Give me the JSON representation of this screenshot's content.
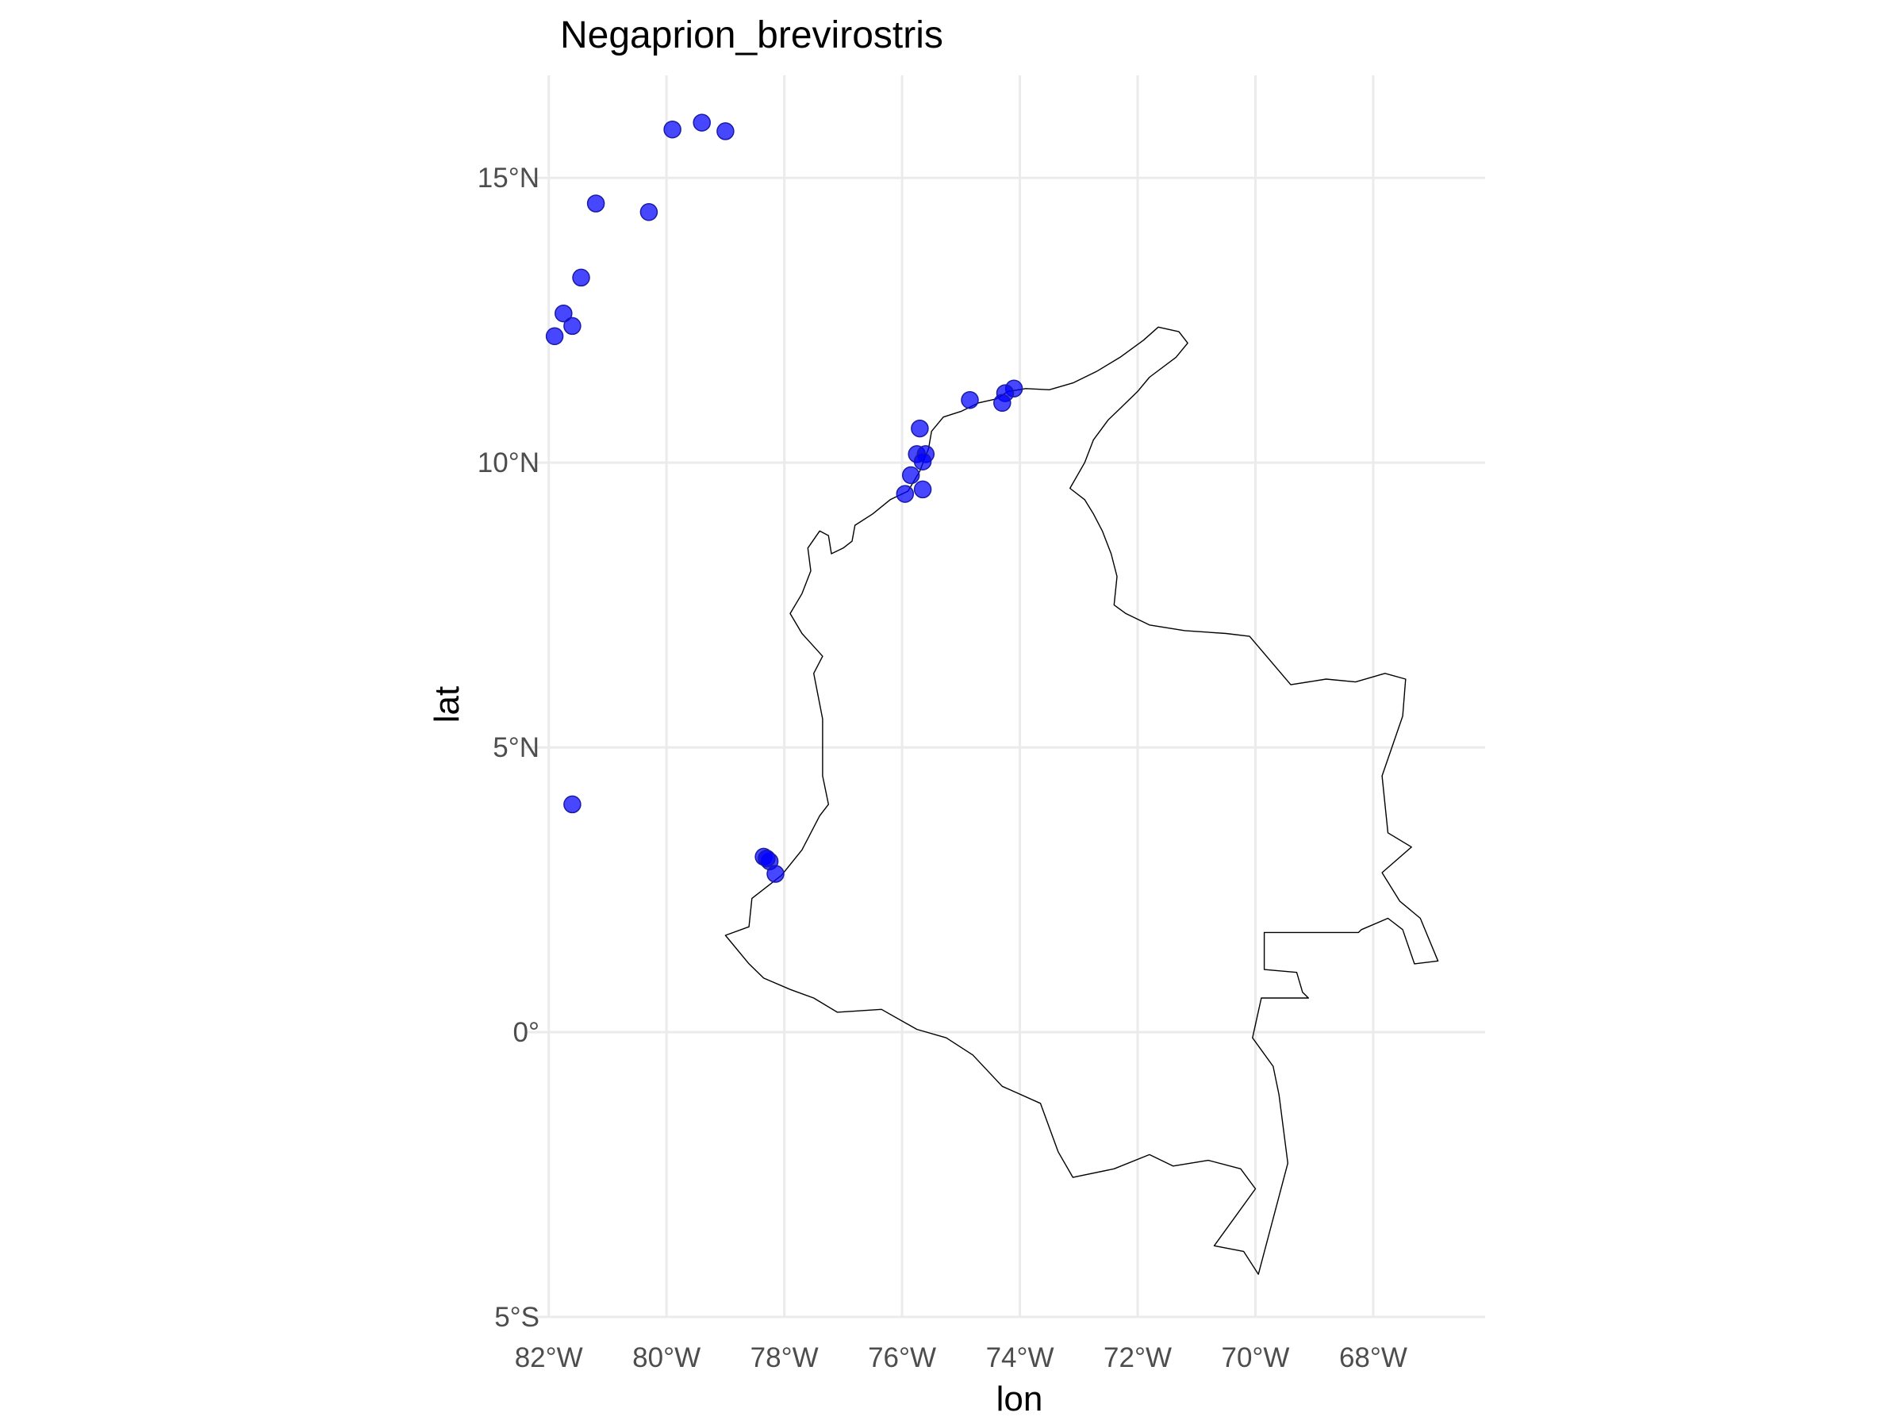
{
  "chart_data": {
    "type": "scatter",
    "title": "Negaprion_brevirostris",
    "xlabel": "lon",
    "ylabel": "lat",
    "xlim": [
      -82.4,
      -66.1
    ],
    "ylim": [
      -5.0,
      16.8
    ],
    "x_ticks": [
      {
        "value": -82,
        "label": "82°W"
      },
      {
        "value": -80,
        "label": "80°W"
      },
      {
        "value": -78,
        "label": "78°W"
      },
      {
        "value": -76,
        "label": "76°W"
      },
      {
        "value": -74,
        "label": "74°W"
      },
      {
        "value": -72,
        "label": "72°W"
      },
      {
        "value": -70,
        "label": "70°W"
      },
      {
        "value": -68,
        "label": "68°W"
      }
    ],
    "y_ticks": [
      {
        "value": 15,
        "label": "15°N"
      },
      {
        "value": 10,
        "label": "10°N"
      },
      {
        "value": 5,
        "label": "5°N"
      },
      {
        "value": 0,
        "label": "0°"
      },
      {
        "value": -5,
        "label": "5°S"
      }
    ],
    "grid": true,
    "legend": "none",
    "point_color": "#0000ff",
    "point_opacity": 0.72,
    "series": [
      {
        "points": [
          {
            "lon": -79.9,
            "lat": 15.85
          },
          {
            "lon": -79.4,
            "lat": 15.97
          },
          {
            "lon": -79.0,
            "lat": 15.82
          },
          {
            "lon": -81.2,
            "lat": 14.55
          },
          {
            "lon": -80.3,
            "lat": 14.4
          },
          {
            "lon": -81.45,
            "lat": 13.25
          },
          {
            "lon": -81.75,
            "lat": 12.62
          },
          {
            "lon": -81.6,
            "lat": 12.4
          },
          {
            "lon": -81.9,
            "lat": 12.22
          },
          {
            "lon": -74.1,
            "lat": 11.3
          },
          {
            "lon": -74.25,
            "lat": 11.22
          },
          {
            "lon": -74.3,
            "lat": 11.05
          },
          {
            "lon": -74.85,
            "lat": 11.1
          },
          {
            "lon": -75.7,
            "lat": 10.6
          },
          {
            "lon": -75.75,
            "lat": 10.15
          },
          {
            "lon": -75.6,
            "lat": 10.15
          },
          {
            "lon": -75.65,
            "lat": 10.02
          },
          {
            "lon": -75.85,
            "lat": 9.78
          },
          {
            "lon": -75.65,
            "lat": 9.53
          },
          {
            "lon": -75.95,
            "lat": 9.45
          },
          {
            "lon": -81.6,
            "lat": 4.0
          },
          {
            "lon": -78.35,
            "lat": 3.08
          },
          {
            "lon": -78.25,
            "lat": 3.0
          },
          {
            "lon": -78.3,
            "lat": 3.05
          },
          {
            "lon": -78.15,
            "lat": 2.78
          }
        ]
      }
    ],
    "outline_label": "",
    "outline": [
      [
        -77.6,
        8.5
      ],
      [
        -77.4,
        8.8
      ],
      [
        -77.25,
        8.72
      ],
      [
        -77.2,
        8.4
      ],
      [
        -77.0,
        8.5
      ],
      [
        -76.85,
        8.62
      ],
      [
        -76.8,
        8.9
      ],
      [
        -76.5,
        9.1
      ],
      [
        -76.2,
        9.35
      ],
      [
        -75.9,
        9.5
      ],
      [
        -75.7,
        9.85
      ],
      [
        -75.55,
        10.25
      ],
      [
        -75.5,
        10.55
      ],
      [
        -75.3,
        10.8
      ],
      [
        -75.0,
        10.9
      ],
      [
        -74.7,
        11.05
      ],
      [
        -74.4,
        11.12
      ],
      [
        -74.2,
        11.25
      ],
      [
        -73.9,
        11.3
      ],
      [
        -73.5,
        11.28
      ],
      [
        -73.1,
        11.4
      ],
      [
        -72.7,
        11.6
      ],
      [
        -72.3,
        11.85
      ],
      [
        -71.9,
        12.15
      ],
      [
        -71.65,
        12.38
      ],
      [
        -71.3,
        12.3
      ],
      [
        -71.15,
        12.1
      ],
      [
        -71.35,
        11.85
      ],
      [
        -71.8,
        11.5
      ],
      [
        -72.0,
        11.25
      ],
      [
        -72.3,
        10.95
      ],
      [
        -72.5,
        10.75
      ],
      [
        -72.75,
        10.4
      ],
      [
        -72.9,
        10.0
      ],
      [
        -73.15,
        9.55
      ],
      [
        -72.9,
        9.35
      ],
      [
        -72.75,
        9.1
      ],
      [
        -72.6,
        8.8
      ],
      [
        -72.45,
        8.4
      ],
      [
        -72.35,
        8.0
      ],
      [
        -72.4,
        7.5
      ],
      [
        -72.2,
        7.35
      ],
      [
        -71.8,
        7.15
      ],
      [
        -71.2,
        7.05
      ],
      [
        -70.5,
        7.0
      ],
      [
        -70.1,
        6.95
      ],
      [
        -69.4,
        6.1
      ],
      [
        -68.8,
        6.2
      ],
      [
        -68.3,
        6.15
      ],
      [
        -67.8,
        6.3
      ],
      [
        -67.45,
        6.2
      ],
      [
        -67.5,
        5.55
      ],
      [
        -67.85,
        4.5
      ],
      [
        -67.75,
        3.5
      ],
      [
        -67.35,
        3.25
      ],
      [
        -67.85,
        2.8
      ],
      [
        -67.55,
        2.3
      ],
      [
        -67.2,
        2.0
      ],
      [
        -66.9,
        1.25
      ],
      [
        -67.3,
        1.2
      ],
      [
        -67.5,
        1.8
      ],
      [
        -67.75,
        2.0
      ],
      [
        -68.2,
        1.8
      ],
      [
        -68.25,
        1.75
      ],
      [
        -69.85,
        1.75
      ],
      [
        -69.85,
        1.1
      ],
      [
        -69.3,
        1.05
      ],
      [
        -69.2,
        0.7
      ],
      [
        -69.1,
        0.6
      ],
      [
        -69.9,
        0.6
      ],
      [
        -70.05,
        -0.1
      ],
      [
        -69.7,
        -0.6
      ],
      [
        -69.6,
        -1.1
      ],
      [
        -69.45,
        -2.3
      ],
      [
        -69.95,
        -4.25
      ],
      [
        -70.2,
        -3.85
      ],
      [
        -70.7,
        -3.75
      ],
      [
        -70.0,
        -2.75
      ],
      [
        -70.25,
        -2.4
      ],
      [
        -70.8,
        -2.25
      ],
      [
        -71.4,
        -2.35
      ],
      [
        -71.8,
        -2.15
      ],
      [
        -72.4,
        -2.4
      ],
      [
        -73.1,
        -2.55
      ],
      [
        -73.35,
        -2.1
      ],
      [
        -73.65,
        -1.25
      ],
      [
        -74.3,
        -0.95
      ],
      [
        -74.8,
        -0.4
      ],
      [
        -75.25,
        -0.1
      ],
      [
        -75.75,
        0.05
      ],
      [
        -76.35,
        0.4
      ],
      [
        -77.1,
        0.35
      ],
      [
        -77.5,
        0.6
      ],
      [
        -77.9,
        0.75
      ],
      [
        -78.35,
        0.95
      ],
      [
        -78.6,
        1.2
      ],
      [
        -79.0,
        1.7
      ],
      [
        -78.6,
        1.85
      ],
      [
        -78.55,
        2.35
      ],
      [
        -78.05,
        2.75
      ],
      [
        -77.7,
        3.2
      ],
      [
        -77.4,
        3.8
      ],
      [
        -77.25,
        4.0
      ],
      [
        -77.35,
        4.5
      ],
      [
        -77.35,
        5.5
      ],
      [
        -77.5,
        6.3
      ],
      [
        -77.35,
        6.6
      ],
      [
        -77.7,
        7.0
      ],
      [
        -77.9,
        7.35
      ],
      [
        -77.7,
        7.7
      ],
      [
        -77.55,
        8.1
      ],
      [
        -77.6,
        8.5
      ]
    ]
  }
}
